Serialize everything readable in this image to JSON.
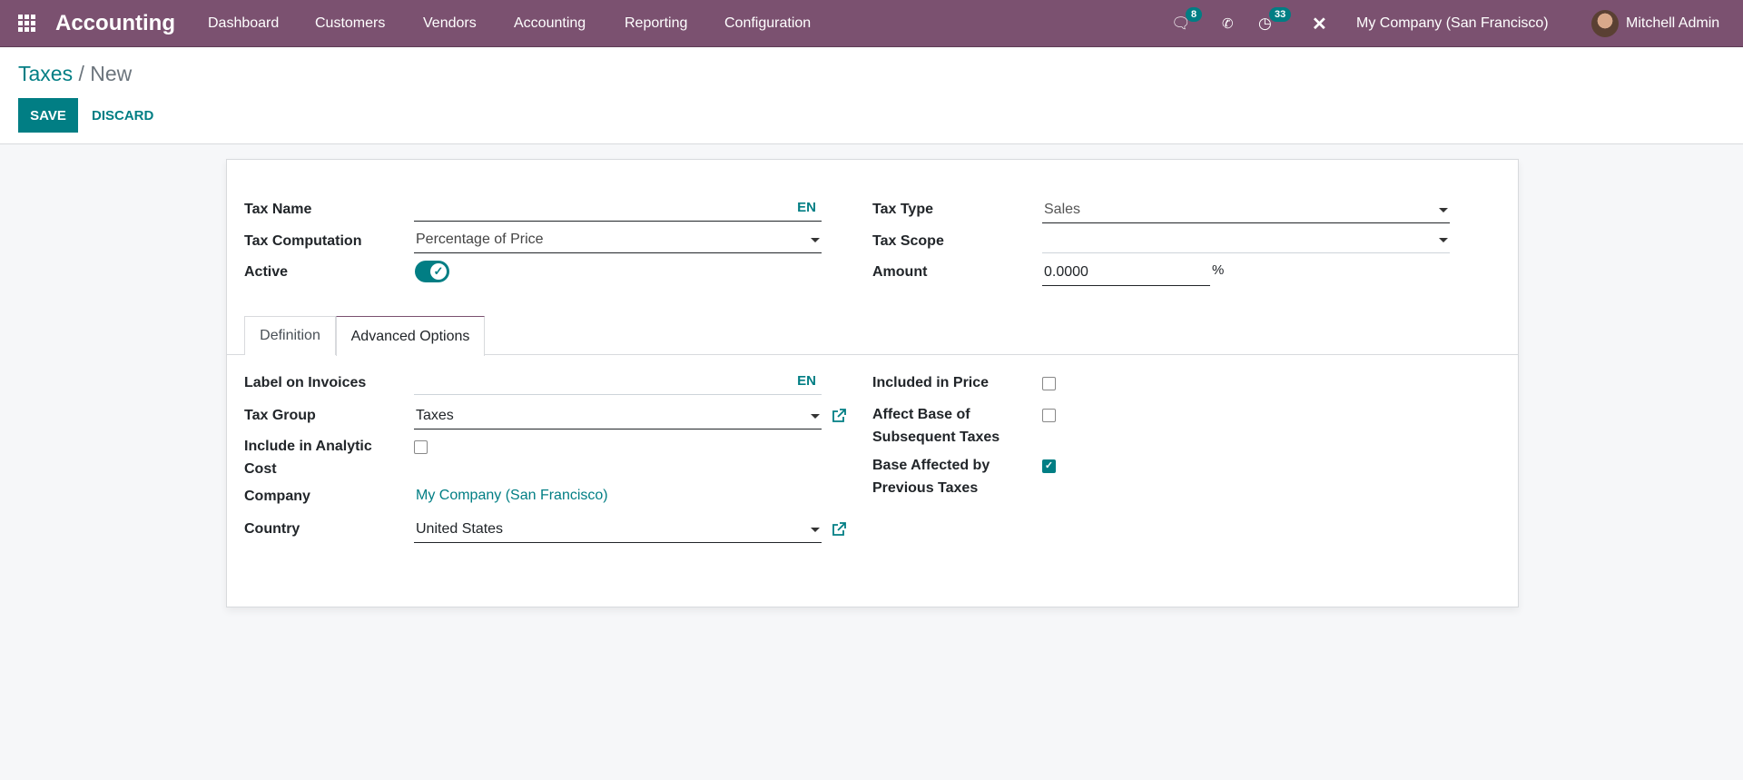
{
  "nav": {
    "app_title": "Accounting",
    "menu": [
      "Dashboard",
      "Customers",
      "Vendors",
      "Accounting",
      "Reporting",
      "Configuration"
    ],
    "messages_count": "8",
    "activities_count": "33",
    "company": "My Company (San Francisco)",
    "user": "Mitchell Admin"
  },
  "breadcrumb": {
    "parent": "Taxes",
    "separator": " / ",
    "current": "New"
  },
  "actions": {
    "save": "SAVE",
    "discard": "DISCARD"
  },
  "form": {
    "tax_name": {
      "label": "Tax Name",
      "value": "",
      "lang": "EN"
    },
    "tax_computation": {
      "label": "Tax Computation",
      "value": "Percentage of Price"
    },
    "active": {
      "label": "Active",
      "value": true
    },
    "tax_type": {
      "label": "Tax Type",
      "value": "Sales"
    },
    "tax_scope": {
      "label": "Tax Scope",
      "value": ""
    },
    "amount": {
      "label": "Amount",
      "value": "0.0000",
      "unit": "%"
    }
  },
  "tabs": [
    {
      "label": "Definition",
      "active": false
    },
    {
      "label": "Advanced Options",
      "active": true
    }
  ],
  "advanced": {
    "label_on_invoices": {
      "label": "Label on Invoices",
      "value": "",
      "lang": "EN"
    },
    "tax_group": {
      "label": "Tax Group",
      "value": "Taxes"
    },
    "include_analytic": {
      "label1": "Include in Analytic",
      "label2": "Cost",
      "checked": false
    },
    "company": {
      "label": "Company",
      "value": "My Company (San Francisco)"
    },
    "country": {
      "label": "Country",
      "value": "United States"
    },
    "included_in_price": {
      "label": "Included in Price",
      "checked": false
    },
    "affect_base": {
      "label1": "Affect Base of",
      "label2": "Subsequent Taxes",
      "checked": false
    },
    "base_affected": {
      "label1": "Base Affected by",
      "label2": "Previous Taxes",
      "checked": true
    }
  },
  "colors": {
    "navbar": "#7b5170",
    "accent": "#017e84"
  }
}
